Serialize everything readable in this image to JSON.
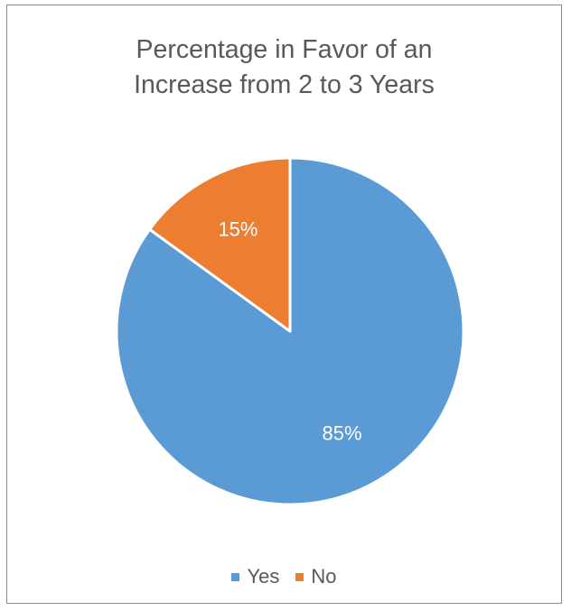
{
  "chart_data": {
    "type": "pie",
    "title": "Percentage in Favor of an\nIncrease from 2 to 3 Years",
    "slices": [
      {
        "label": "Yes",
        "value": 85,
        "data_label": "85%",
        "color": "#5b9bd5"
      },
      {
        "label": "No",
        "value": 15,
        "data_label": "15%",
        "color": "#ed7d31"
      }
    ],
    "start_angle_deg": 0,
    "direction": "clockwise",
    "legend_position": "bottom",
    "label_color": "#ffffff",
    "separator_color": "#ffffff"
  }
}
